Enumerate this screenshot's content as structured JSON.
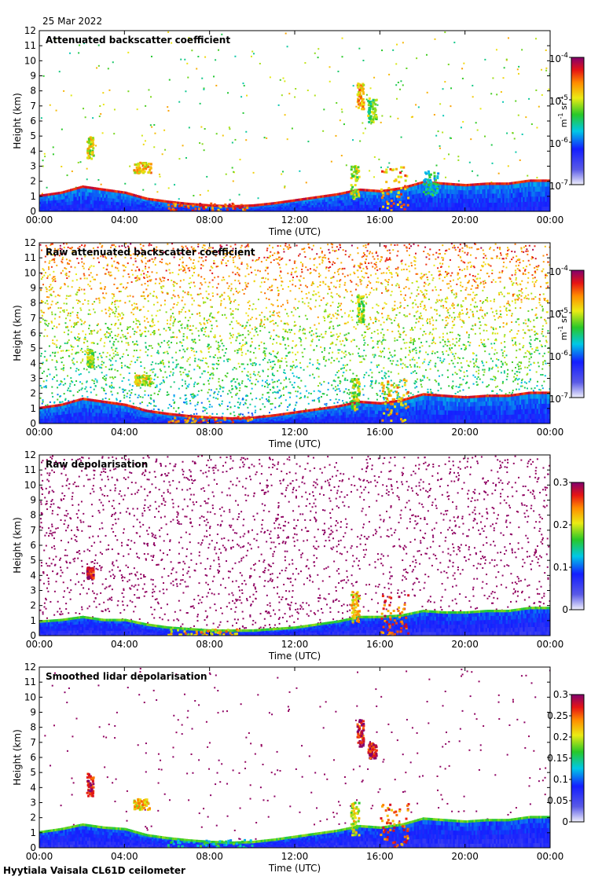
{
  "date_label": "25 Mar 2022",
  "footer_label": "Hyytiala Vaisala CL61D ceilometer",
  "chart_data": [
    {
      "type": "heatmap",
      "title": "Attenuated backscatter coefficient",
      "xlabel": "Time (UTC)",
      "ylabel": "Height (km)",
      "xticks": [
        "00:00",
        "04:00",
        "08:00",
        "12:00",
        "16:00",
        "20:00",
        "00:00"
      ],
      "ylim": [
        0,
        12
      ],
      "yticks": [
        "0",
        "1",
        "2",
        "3",
        "4",
        "5",
        "6",
        "7",
        "8",
        "9",
        "10",
        "11",
        "12"
      ],
      "colorbar": {
        "scale": "log",
        "range": [
          1e-07,
          0.0001
        ],
        "ticks": [
          {
            "base": "10",
            "exp": "-7"
          },
          {
            "base": "10",
            "exp": "-6"
          },
          {
            "base": "10",
            "exp": "-5"
          },
          {
            "base": "10",
            "exp": "-4"
          }
        ],
        "unit_parts": [
          "m",
          "-1",
          " sr",
          "-1"
        ]
      },
      "colormap": "rainbow",
      "noise": {
        "density": 0.07,
        "min_level": 0.45
      },
      "boundary_layer_top_km": [
        [
          0,
          1.0
        ],
        [
          1,
          1.2
        ],
        [
          2,
          1.6
        ],
        [
          3,
          1.4
        ],
        [
          4,
          1.2
        ],
        [
          5,
          0.8
        ],
        [
          6,
          0.6
        ],
        [
          7,
          0.45
        ],
        [
          8,
          0.35
        ],
        [
          9,
          0.3
        ],
        [
          10,
          0.35
        ],
        [
          11,
          0.5
        ],
        [
          12,
          0.7
        ],
        [
          13,
          0.9
        ],
        [
          14,
          1.1
        ],
        [
          15,
          1.4
        ],
        [
          16,
          1.3
        ],
        [
          17,
          1.5
        ],
        [
          18,
          1.9
        ],
        [
          19,
          1.8
        ],
        [
          20,
          1.7
        ],
        [
          21,
          1.8
        ],
        [
          22,
          1.8
        ],
        [
          23,
          2.0
        ],
        [
          24,
          2.0
        ]
      ],
      "cloud_features": [
        {
          "t_start": 2.2,
          "t_end": 2.5,
          "h_base": 3.5,
          "h_top": 5.0,
          "level": 0.75
        },
        {
          "t_start": 4.4,
          "t_end": 5.2,
          "h_base": 2.6,
          "h_top": 3.3,
          "level": 0.8
        },
        {
          "t_start": 14.9,
          "t_end": 15.2,
          "h_base": 6.8,
          "h_top": 8.6,
          "level": 0.82
        },
        {
          "t_start": 15.4,
          "t_end": 15.8,
          "h_base": 6.0,
          "h_top": 7.6,
          "level": 0.65
        },
        {
          "t_start": 14.6,
          "t_end": 15.0,
          "h_base": 0.9,
          "h_top": 3.1,
          "level": 0.7
        },
        {
          "t_start": 16.0,
          "t_end": 17.3,
          "h_base": 0.0,
          "h_top": 3.0,
          "level": 0.85
        },
        {
          "t_start": 18.0,
          "t_end": 18.7,
          "h_base": 1.1,
          "h_top": 2.8,
          "level": 0.55
        },
        {
          "t_start": 6.0,
          "t_end": 10.0,
          "h_base": 0.0,
          "h_top": 0.6,
          "level": 0.9
        }
      ]
    },
    {
      "type": "heatmap",
      "title": "Raw attenuated backscatter coefficient",
      "xlabel": "Time (UTC)",
      "ylabel": "Height (km)",
      "xticks": [
        "00:00",
        "04:00",
        "08:00",
        "12:00",
        "16:00",
        "20:00",
        "00:00"
      ],
      "ylim": [
        0,
        12
      ],
      "yticks": [
        "0",
        "1",
        "2",
        "3",
        "4",
        "5",
        "6",
        "7",
        "8",
        "9",
        "10",
        "11",
        "12"
      ],
      "colorbar": {
        "scale": "log",
        "range": [
          1e-07,
          0.0001
        ],
        "ticks": [
          {
            "base": "10",
            "exp": "-7"
          },
          {
            "base": "10",
            "exp": "-6"
          },
          {
            "base": "10",
            "exp": "-5"
          },
          {
            "base": "10",
            "exp": "-4"
          }
        ],
        "unit_parts": [
          "m",
          "-1",
          " sr",
          "-1"
        ]
      },
      "colormap": "rainbow",
      "noise": {
        "density": 0.95,
        "min_level": 0.2,
        "height_gain": 0.45
      },
      "boundary_layer_top_km": [
        [
          0,
          1.0
        ],
        [
          1,
          1.2
        ],
        [
          2,
          1.6
        ],
        [
          3,
          1.4
        ],
        [
          4,
          1.2
        ],
        [
          5,
          0.8
        ],
        [
          6,
          0.6
        ],
        [
          7,
          0.45
        ],
        [
          8,
          0.35
        ],
        [
          9,
          0.3
        ],
        [
          10,
          0.35
        ],
        [
          11,
          0.5
        ],
        [
          12,
          0.7
        ],
        [
          13,
          0.9
        ],
        [
          14,
          1.1
        ],
        [
          15,
          1.4
        ],
        [
          16,
          1.3
        ],
        [
          17,
          1.5
        ],
        [
          18,
          1.9
        ],
        [
          19,
          1.8
        ],
        [
          20,
          1.7
        ],
        [
          21,
          1.8
        ],
        [
          22,
          1.8
        ],
        [
          23,
          2.0
        ],
        [
          24,
          2.0
        ]
      ],
      "cloud_features": [
        {
          "t_start": 2.2,
          "t_end": 2.5,
          "h_base": 3.8,
          "h_top": 5.0,
          "level": 0.7
        },
        {
          "t_start": 4.4,
          "t_end": 5.2,
          "h_base": 2.6,
          "h_top": 3.3,
          "level": 0.75
        },
        {
          "t_start": 14.9,
          "t_end": 15.2,
          "h_base": 6.8,
          "h_top": 8.6,
          "level": 0.7
        },
        {
          "t_start": 14.6,
          "t_end": 15.0,
          "h_base": 0.9,
          "h_top": 3.1,
          "level": 0.7
        },
        {
          "t_start": 16.0,
          "t_end": 17.3,
          "h_base": 0.0,
          "h_top": 3.0,
          "level": 0.8
        },
        {
          "t_start": 6.0,
          "t_end": 10.0,
          "h_base": 0.0,
          "h_top": 0.6,
          "level": 0.9
        }
      ]
    },
    {
      "type": "heatmap",
      "title": "Raw depolarisation",
      "xlabel": "Time (UTC)",
      "ylabel": "Height (km)",
      "xticks": [
        "00:00",
        "04:00",
        "08:00",
        "12:00",
        "16:00",
        "20:00",
        "00:00"
      ],
      "ylim": [
        0,
        12
      ],
      "yticks": [
        "0",
        "1",
        "2",
        "3",
        "4",
        "5",
        "6",
        "7",
        "8",
        "9",
        "10",
        "11",
        "12"
      ],
      "colorbar": {
        "scale": "linear",
        "range": [
          0,
          0.3
        ],
        "ticks": [
          {
            "base": "0",
            "exp": ""
          },
          {
            "base": "0.1",
            "exp": ""
          },
          {
            "base": "0.2",
            "exp": ""
          },
          {
            "base": "0.3",
            "exp": ""
          }
        ]
      },
      "colormap": "rainbow",
      "noise": {
        "density": 0.5,
        "min_level": 0.98
      },
      "boundary_layer_top_km": [
        [
          0,
          0.9
        ],
        [
          1,
          1.0
        ],
        [
          2,
          1.2
        ],
        [
          3,
          1.0
        ],
        [
          4,
          1.0
        ],
        [
          5,
          0.7
        ],
        [
          6,
          0.5
        ],
        [
          7,
          0.4
        ],
        [
          8,
          0.3
        ],
        [
          9,
          0.3
        ],
        [
          10,
          0.3
        ],
        [
          11,
          0.4
        ],
        [
          12,
          0.5
        ],
        [
          13,
          0.7
        ],
        [
          14,
          0.9
        ],
        [
          15,
          1.2
        ],
        [
          16,
          1.2
        ],
        [
          17,
          1.3
        ],
        [
          18,
          1.6
        ],
        [
          19,
          1.5
        ],
        [
          20,
          1.5
        ],
        [
          21,
          1.6
        ],
        [
          22,
          1.6
        ],
        [
          23,
          1.8
        ],
        [
          24,
          1.8
        ]
      ],
      "cloud_features": [
        {
          "t_start": 2.2,
          "t_end": 2.5,
          "h_base": 3.8,
          "h_top": 4.6,
          "level": 1.0
        },
        {
          "t_start": 14.6,
          "t_end": 15.0,
          "h_base": 0.9,
          "h_top": 3.0,
          "level": 0.8
        },
        {
          "t_start": 16.0,
          "t_end": 17.3,
          "h_base": 0.0,
          "h_top": 2.8,
          "level": 0.95
        },
        {
          "t_start": 6.0,
          "t_end": 9.5,
          "h_base": 0.0,
          "h_top": 0.5,
          "level": 0.8
        }
      ]
    },
    {
      "type": "heatmap",
      "title": "Smoothed lidar depolarisation",
      "xlabel": "Time (UTC)",
      "ylabel": "Height (km)",
      "xticks": [
        "00:00",
        "04:00",
        "08:00",
        "12:00",
        "16:00",
        "20:00",
        "00:00"
      ],
      "ylim": [
        0,
        12
      ],
      "yticks": [
        "0",
        "1",
        "2",
        "3",
        "4",
        "5",
        "6",
        "7",
        "8",
        "9",
        "10",
        "11",
        "12"
      ],
      "colorbar": {
        "scale": "linear",
        "range": [
          0,
          0.3
        ],
        "ticks": [
          {
            "base": "0",
            "exp": ""
          },
          {
            "base": "0.05",
            "exp": ""
          },
          {
            "base": "0.1",
            "exp": ""
          },
          {
            "base": "0.15",
            "exp": ""
          },
          {
            "base": "0.2",
            "exp": ""
          },
          {
            "base": "0.25",
            "exp": ""
          },
          {
            "base": "0.3",
            "exp": ""
          }
        ]
      },
      "colormap": "rainbow",
      "noise": {
        "density": 0.06,
        "min_level": 0.98
      },
      "boundary_layer_top_km": [
        [
          0,
          1.0
        ],
        [
          1,
          1.2
        ],
        [
          2,
          1.5
        ],
        [
          3,
          1.3
        ],
        [
          4,
          1.2
        ],
        [
          5,
          0.8
        ],
        [
          6,
          0.6
        ],
        [
          7,
          0.45
        ],
        [
          8,
          0.35
        ],
        [
          9,
          0.3
        ],
        [
          10,
          0.35
        ],
        [
          11,
          0.5
        ],
        [
          12,
          0.7
        ],
        [
          13,
          0.9
        ],
        [
          14,
          1.1
        ],
        [
          15,
          1.4
        ],
        [
          16,
          1.3
        ],
        [
          17,
          1.5
        ],
        [
          18,
          1.9
        ],
        [
          19,
          1.8
        ],
        [
          20,
          1.7
        ],
        [
          21,
          1.8
        ],
        [
          22,
          1.8
        ],
        [
          23,
          2.0
        ],
        [
          24,
          2.0
        ]
      ],
      "cloud_features": [
        {
          "t_start": 2.2,
          "t_end": 2.5,
          "h_base": 3.5,
          "h_top": 5.0,
          "level": 1.0
        },
        {
          "t_start": 4.4,
          "t_end": 5.2,
          "h_base": 2.6,
          "h_top": 3.3,
          "level": 0.8
        },
        {
          "t_start": 14.9,
          "t_end": 15.2,
          "h_base": 6.8,
          "h_top": 8.6,
          "level": 1.0
        },
        {
          "t_start": 15.4,
          "t_end": 15.8,
          "h_base": 6.0,
          "h_top": 7.0,
          "level": 1.0
        },
        {
          "t_start": 14.6,
          "t_end": 15.0,
          "h_base": 0.9,
          "h_top": 3.1,
          "level": 0.75
        },
        {
          "t_start": 16.0,
          "t_end": 17.3,
          "h_base": 0.0,
          "h_top": 3.0,
          "level": 0.9
        },
        {
          "t_start": 6.0,
          "t_end": 10.0,
          "h_base": 0.0,
          "h_top": 0.6,
          "level": 0.55
        }
      ]
    }
  ]
}
